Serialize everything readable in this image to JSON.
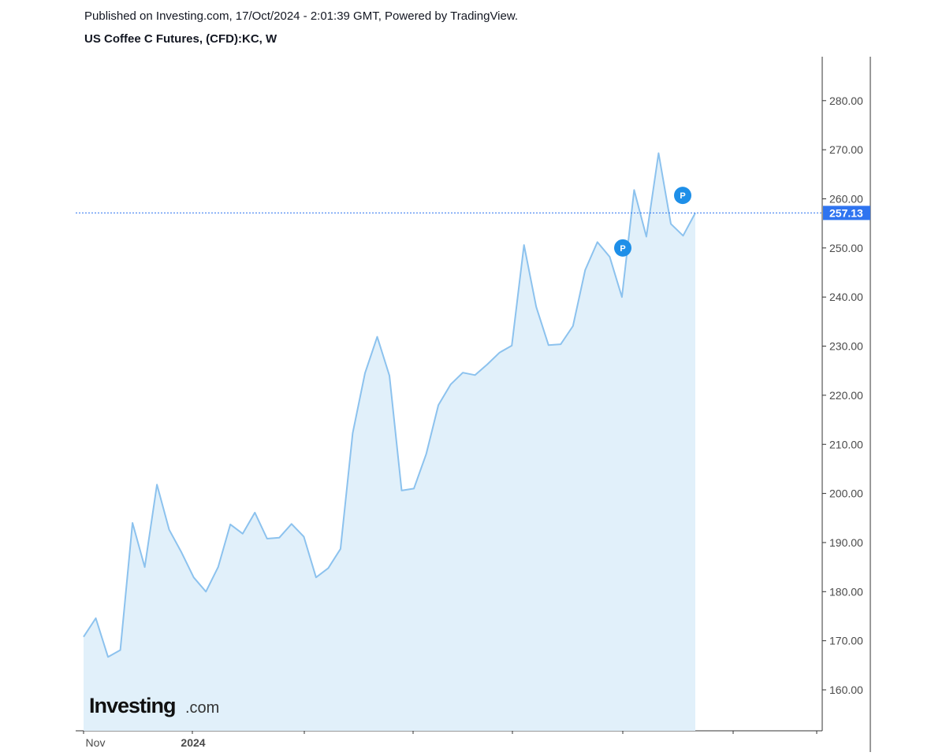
{
  "header": {
    "publish_text": "Published on Investing.com, 17/Oct/2024 - 2:01:39 GMT, Powered by TradingView.",
    "title": "US Coffee C Futures, (CFD):KC, W"
  },
  "logo": {
    "main": "Investing",
    "suffix": ".com"
  },
  "colors": {
    "line": "#8cc2ee",
    "fill": "#e1f0fa",
    "price_tag": "#2f74f0",
    "marker": "#1e8fe8",
    "axis": "#333333"
  },
  "chart_data": {
    "type": "area",
    "title": "US Coffee C Futures, (CFD):KC, W",
    "interval": "W",
    "ylim": [
      150,
      285
    ],
    "y_ticks": [
      160,
      170,
      180,
      190,
      200,
      210,
      220,
      230,
      240,
      250,
      260,
      270,
      280
    ],
    "x_labels": [
      {
        "label": "Nov",
        "index": 1,
        "bold": false
      },
      {
        "label": "2024",
        "index": 9,
        "bold": true
      }
    ],
    "values": [
      170.8,
      174.6,
      166.7,
      168.1,
      194.0,
      185.0,
      201.8,
      192.6,
      188.0,
      182.9,
      180.0,
      185.0,
      193.7,
      191.8,
      196.1,
      190.8,
      191.0,
      193.8,
      191.2,
      182.9,
      184.8,
      188.7,
      212.3,
      224.5,
      231.9,
      224.0,
      200.6,
      201.0,
      208.0,
      218.0,
      222.2,
      224.6,
      224.1,
      226.3,
      228.7,
      230.1,
      250.6,
      238.0,
      230.2,
      230.4,
      234.1,
      245.5,
      251.2,
      248.2,
      240.0,
      261.8,
      252.3,
      269.3,
      254.9,
      252.5,
      257.13
    ],
    "last_price": "257.13",
    "markers": [
      {
        "label": "P",
        "index": 44,
        "value": 250.0
      },
      {
        "label": "P",
        "index": 49,
        "value": 260.7
      }
    ]
  }
}
